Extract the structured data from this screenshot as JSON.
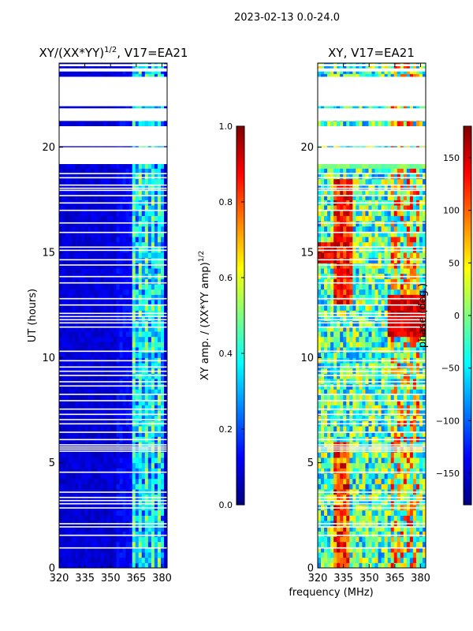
{
  "suptitle": "2023-02-13 0.0-24.0",
  "xlabel_common": "frequency (MHz)",
  "colors": {
    "jet": [
      "#00007f",
      "#0000ff",
      "#007fff",
      "#00ffff",
      "#7fff7f",
      "#ffff00",
      "#ff7f00",
      "#ff0000",
      "#7f0000"
    ],
    "flag": "#ffffff"
  },
  "chart_data": [
    {
      "type": "heatmap",
      "title_prefix": "XY/(XX*YY)",
      "title_sup": "1/2",
      "title_suffix": ", V17=EA21",
      "ylabel": "UT (hours)",
      "xlim": [
        320,
        383
      ],
      "ylim": [
        0,
        24
      ],
      "xticks": [
        320,
        335,
        350,
        365,
        380
      ],
      "xtick_labels": [
        "320",
        "335",
        "350",
        "365",
        "380"
      ],
      "yticks": [
        0,
        5,
        10,
        15,
        20
      ],
      "ytick_labels": [
        "0",
        "5",
        "10",
        "15",
        "20"
      ],
      "colorbar": {
        "label_prefix": "XY amp. / (XX*YY amp)",
        "label_sup": "1/2",
        "range": [
          0.0,
          1.0
        ],
        "ticks": [
          0.0,
          0.2,
          0.4,
          0.6,
          0.8,
          1.0
        ],
        "tick_labels": [
          "0.0",
          "0.2",
          "0.4",
          "0.6",
          "0.8",
          "1.0"
        ]
      }
    },
    {
      "type": "heatmap",
      "title": "XY, V17=EA21",
      "xlim": [
        320,
        383
      ],
      "ylim": [
        0,
        24
      ],
      "xticks": [
        320,
        335,
        350,
        365,
        380
      ],
      "xtick_labels": [
        "320",
        "335",
        "350",
        "365",
        "380"
      ],
      "yticks": [
        0,
        5,
        10,
        15,
        20
      ],
      "ytick_labels": [
        "0",
        "5",
        "10",
        "15",
        "20"
      ],
      "colorbar": {
        "label": "phase (deg.)",
        "range": [
          -180,
          180
        ],
        "ticks": [
          -150,
          -100,
          -50,
          0,
          50,
          100,
          150
        ],
        "tick_labels": [
          "−150",
          "−100",
          "−50",
          "0",
          "50",
          "100",
          "150"
        ]
      }
    }
  ],
  "flagged_ut_ranges": [
    [
      19.2,
      20.0
    ],
    [
      20.05,
      21.0
    ],
    [
      21.25,
      21.85
    ],
    [
      21.95,
      23.35
    ],
    [
      23.6,
      23.75
    ],
    [
      23.85,
      23.95
    ]
  ],
  "flagged_ut_lines": [
    0.95,
    1.55,
    1.95,
    2.1,
    2.85,
    3.05,
    3.2,
    3.35,
    3.6,
    4.55,
    5.55,
    5.65,
    5.75,
    5.85,
    6.1,
    6.45,
    6.85,
    7.05,
    7.3,
    7.55,
    7.95,
    8.25,
    8.65,
    8.85,
    9.15,
    9.35,
    9.55,
    9.85,
    10.3,
    11.45,
    11.65,
    11.8,
    11.95,
    12.1,
    12.5,
    12.8,
    13.55,
    13.85,
    14.4,
    14.65,
    15.1,
    15.25,
    15.95,
    16.4,
    17.0,
    17.35,
    17.7,
    17.95,
    18.05,
    18.2,
    18.55,
    18.75
  ]
}
